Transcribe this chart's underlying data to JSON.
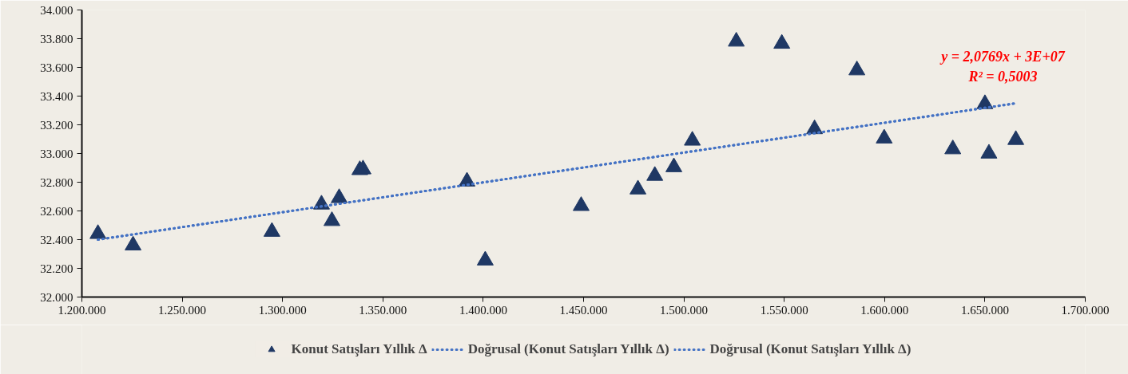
{
  "chart_data": {
    "type": "scatter",
    "marker": "triangle",
    "legend": "bottom",
    "grid": false,
    "annotations": [
      "y = 2,0769x + 3E+07",
      "R² = 0,5003"
    ],
    "xlim": [
      1200000,
      1700000
    ],
    "ylim": [
      32000,
      34000
    ],
    "xticks": [
      {
        "value": 1200000,
        "label": "1.200.000"
      },
      {
        "value": 1250000,
        "label": "1.250.000"
      },
      {
        "value": 1300000,
        "label": "1.300.000"
      },
      {
        "value": 1350000,
        "label": "1.350.000"
      },
      {
        "value": 1400000,
        "label": "1.400.000"
      },
      {
        "value": 1450000,
        "label": "1.450.000"
      },
      {
        "value": 1500000,
        "label": "1.500.000"
      },
      {
        "value": 1550000,
        "label": "1.550.000"
      },
      {
        "value": 1600000,
        "label": "1.600.000"
      },
      {
        "value": 1650000,
        "label": "1.650.000"
      },
      {
        "value": 1700000,
        "label": "1.700.000"
      }
    ],
    "yticks": [
      {
        "value": 32000,
        "label": "32.000"
      },
      {
        "value": 32200,
        "label": "32.200"
      },
      {
        "value": 32400,
        "label": "32.400"
      },
      {
        "value": 32600,
        "label": "32.600"
      },
      {
        "value": 32800,
        "label": "32.800"
      },
      {
        "value": 33000,
        "label": "33.000"
      },
      {
        "value": 33200,
        "label": "33.200"
      },
      {
        "value": 33400,
        "label": "33.400"
      },
      {
        "value": 33600,
        "label": "33.600"
      },
      {
        "value": 33800,
        "label": "33.800"
      },
      {
        "value": 34000,
        "label": "34.000"
      }
    ],
    "series": [
      {
        "name": "Konut Satışları Yıllık Δ",
        "type": "scatter",
        "color": "#1f3864",
        "x": [
          1208000,
          1225500,
          1294700,
          1319400,
          1324600,
          1328200,
          1338500,
          1340100,
          1391900,
          1401000,
          1448800,
          1477100,
          1485500,
          1495000,
          1504200,
          1526100,
          1548800,
          1565100,
          1586200,
          1599800,
          1634000,
          1650000,
          1652000,
          1665400
        ],
        "values": [
          32440,
          32360,
          32455,
          32645,
          32530,
          32690,
          32885,
          32890,
          32805,
          32255,
          32635,
          32750,
          32845,
          32905,
          33090,
          33780,
          33765,
          33170,
          33580,
          33105,
          33030,
          33345,
          33000,
          33095
        ]
      },
      {
        "name": "Doğrusal (Konut Satışları Yıllık Δ)",
        "type": "line",
        "line_style": "dotted",
        "marker": "none",
        "color": "#4472c4",
        "x": [
          1208000,
          1665400
        ],
        "values": [
          32400,
          33350
        ]
      },
      {
        "name": "Doğrusal (Konut Satışları Yıllık Δ)",
        "type": "line",
        "line_style": "dotted",
        "marker": "none",
        "color": "#4472c4",
        "x": [
          1208000,
          1665400
        ],
        "values": [
          32400,
          33350
        ]
      }
    ]
  }
}
